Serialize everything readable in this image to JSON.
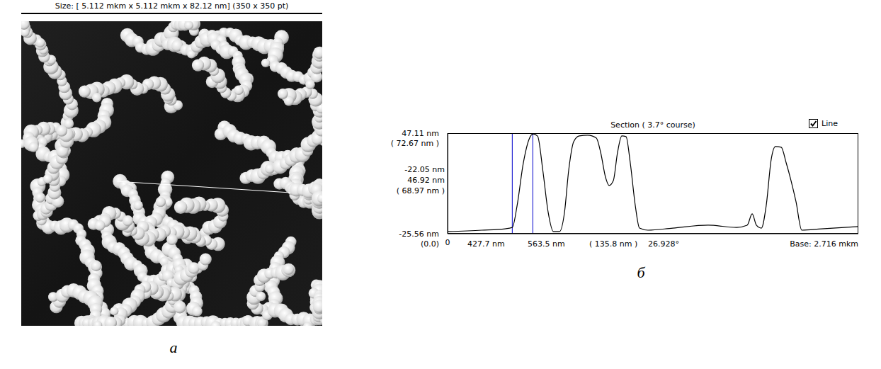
{
  "image_panel": {
    "header": "Size: [ 5.112 mkm x 5.112 mkm x 82.12 nm] (350 x 350 pt)",
    "letter": "а"
  },
  "chart_data": {
    "type": "line",
    "letter": "б",
    "title": "Section ( 3.7° course)",
    "checkbox": {
      "label": "Line",
      "checked": true
    },
    "x": [
      0,
      225,
      380,
      428,
      460,
      500,
      540,
      565,
      595,
      630,
      665,
      700,
      740,
      773,
      801,
      834,
      871,
      927,
      983,
      1012,
      1044,
      1068,
      1096,
      1124,
      1152,
      1180,
      1208,
      1241,
      1269,
      1325,
      1489,
      1723,
      1911,
      1981,
      2014,
      2042,
      2075,
      2107,
      2140,
      2168,
      2206,
      2239,
      2271,
      2304,
      2342,
      2473,
      2716
    ],
    "values": [
      -24,
      -23,
      -22,
      -21,
      -5,
      25,
      43,
      46.5,
      45,
      20,
      -10,
      -24,
      -24,
      -10.2,
      20.5,
      41,
      45.1,
      45.6,
      43.6,
      33.3,
      15.4,
      9.3,
      12.8,
      33.3,
      45.1,
      44.6,
      25.6,
      -5.1,
      -21.5,
      -23,
      -21.5,
      -19.4,
      -21,
      -19.4,
      -11.2,
      -19.4,
      -21.5,
      -5.1,
      28.2,
      37.4,
      36.9,
      25.6,
      12.8,
      -2.5,
      -23,
      -22,
      -20.4
    ],
    "color": "#000000",
    "xlim": [
      0,
      2716
    ],
    "xticks": [
      0
    ],
    "ylim": [
      -25.56,
      47.11
    ],
    "yticks": [
      {
        "value": 47.11,
        "label": "47.11 nm"
      },
      {
        "value": -25.56,
        "label": "-25.56 nm"
      }
    ],
    "ytick_sublabels": [
      "( 72.67 nm )",
      "(0.0)"
    ],
    "cursors": {
      "values": [
        427.7,
        563.5
      ],
      "color": "#0000cc"
    },
    "cursor_readouts": [
      "-22.05 nm",
      "46.92 nm",
      "( 68.97 nm )"
    ],
    "footer": [
      "427.7 nm",
      "563.5 nm",
      "( 135.8 nm )",
      "26.928°"
    ],
    "base_label": "Base: 2.716 mkm",
    "grid": false
  }
}
